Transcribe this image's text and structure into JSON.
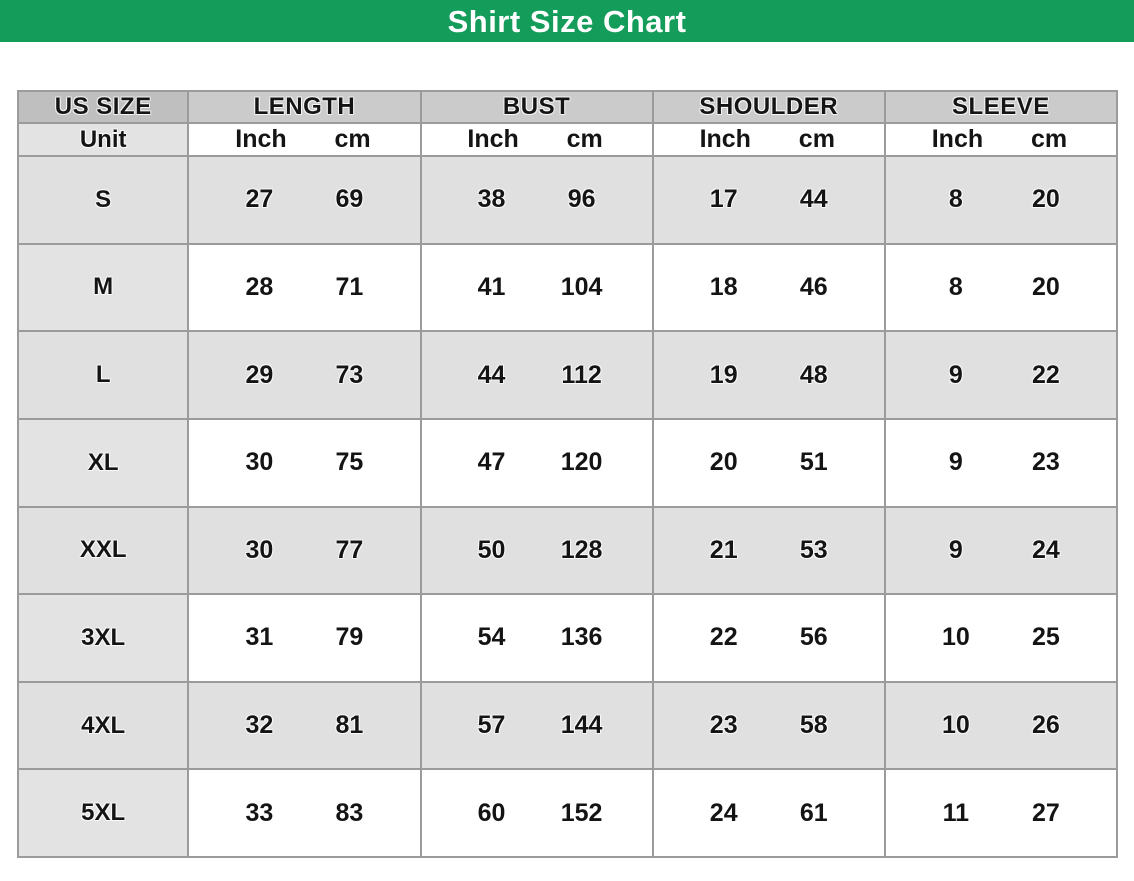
{
  "title": "Shirt Size Chart",
  "colors": {
    "banner_green": "#149C5B",
    "size_header_bg": "#BFBFBF",
    "measure_header_bg": "#CBCBCB",
    "label_column_bg": "#E3E3E3",
    "shaded_row_bg": "#E0E0E0",
    "border_gray": "#9B9B9B",
    "title_text": "#FFFFFF",
    "cell_text": "#141414"
  },
  "table": {
    "headers": {
      "size": "US SIZE",
      "measures": [
        "LENGTH",
        "BUST",
        "SHOULDER",
        "SLEEVE"
      ]
    },
    "unit_row": {
      "label": "Unit",
      "inch": "Inch",
      "cm": "cm"
    },
    "rows": [
      {
        "size": "S",
        "shade": true,
        "length": [
          "27",
          "69"
        ],
        "bust": [
          "38",
          "96"
        ],
        "shoulder": [
          "17",
          "44"
        ],
        "sleeve": [
          "8",
          "20"
        ]
      },
      {
        "size": "M",
        "shade": false,
        "length": [
          "28",
          "71"
        ],
        "bust": [
          "41",
          "104"
        ],
        "shoulder": [
          "18",
          "46"
        ],
        "sleeve": [
          "8",
          "20"
        ]
      },
      {
        "size": "L",
        "shade": true,
        "length": [
          "29",
          "73"
        ],
        "bust": [
          "44",
          "112"
        ],
        "shoulder": [
          "19",
          "48"
        ],
        "sleeve": [
          "9",
          "22"
        ]
      },
      {
        "size": "XL",
        "shade": false,
        "length": [
          "30",
          "75"
        ],
        "bust": [
          "47",
          "120"
        ],
        "shoulder": [
          "20",
          "51"
        ],
        "sleeve": [
          "9",
          "23"
        ]
      },
      {
        "size": "XXL",
        "shade": true,
        "length": [
          "30",
          "77"
        ],
        "bust": [
          "50",
          "128"
        ],
        "shoulder": [
          "21",
          "53"
        ],
        "sleeve": [
          "9",
          "24"
        ]
      },
      {
        "size": "3XL",
        "shade": false,
        "length": [
          "31",
          "79"
        ],
        "bust": [
          "54",
          "136"
        ],
        "shoulder": [
          "22",
          "56"
        ],
        "sleeve": [
          "10",
          "25"
        ]
      },
      {
        "size": "4XL",
        "shade": true,
        "length": [
          "32",
          "81"
        ],
        "bust": [
          "57",
          "144"
        ],
        "shoulder": [
          "23",
          "58"
        ],
        "sleeve": [
          "10",
          "26"
        ]
      },
      {
        "size": "5XL",
        "shade": false,
        "length": [
          "33",
          "83"
        ],
        "bust": [
          "60",
          "152"
        ],
        "shoulder": [
          "24",
          "61"
        ],
        "sleeve": [
          "11",
          "27"
        ]
      }
    ]
  },
  "chart_data": {
    "type": "table",
    "title": "Shirt Size Chart",
    "columns": [
      "US SIZE",
      "LENGTH Inch",
      "LENGTH cm",
      "BUST Inch",
      "BUST cm",
      "SHOULDER Inch",
      "SHOULDER cm",
      "SLEEVE Inch",
      "SLEEVE cm"
    ],
    "rows": [
      [
        "S",
        27,
        69,
        38,
        96,
        17,
        44,
        8,
        20
      ],
      [
        "M",
        28,
        71,
        41,
        104,
        18,
        46,
        8,
        20
      ],
      [
        "L",
        29,
        73,
        44,
        112,
        19,
        48,
        9,
        22
      ],
      [
        "XL",
        30,
        75,
        47,
        120,
        20,
        51,
        9,
        23
      ],
      [
        "XXL",
        30,
        77,
        50,
        128,
        21,
        53,
        9,
        24
      ],
      [
        "3XL",
        31,
        79,
        54,
        136,
        22,
        56,
        10,
        25
      ],
      [
        "4XL",
        32,
        81,
        57,
        144,
        23,
        58,
        10,
        26
      ],
      [
        "5XL",
        33,
        83,
        60,
        152,
        24,
        61,
        11,
        27
      ]
    ]
  }
}
